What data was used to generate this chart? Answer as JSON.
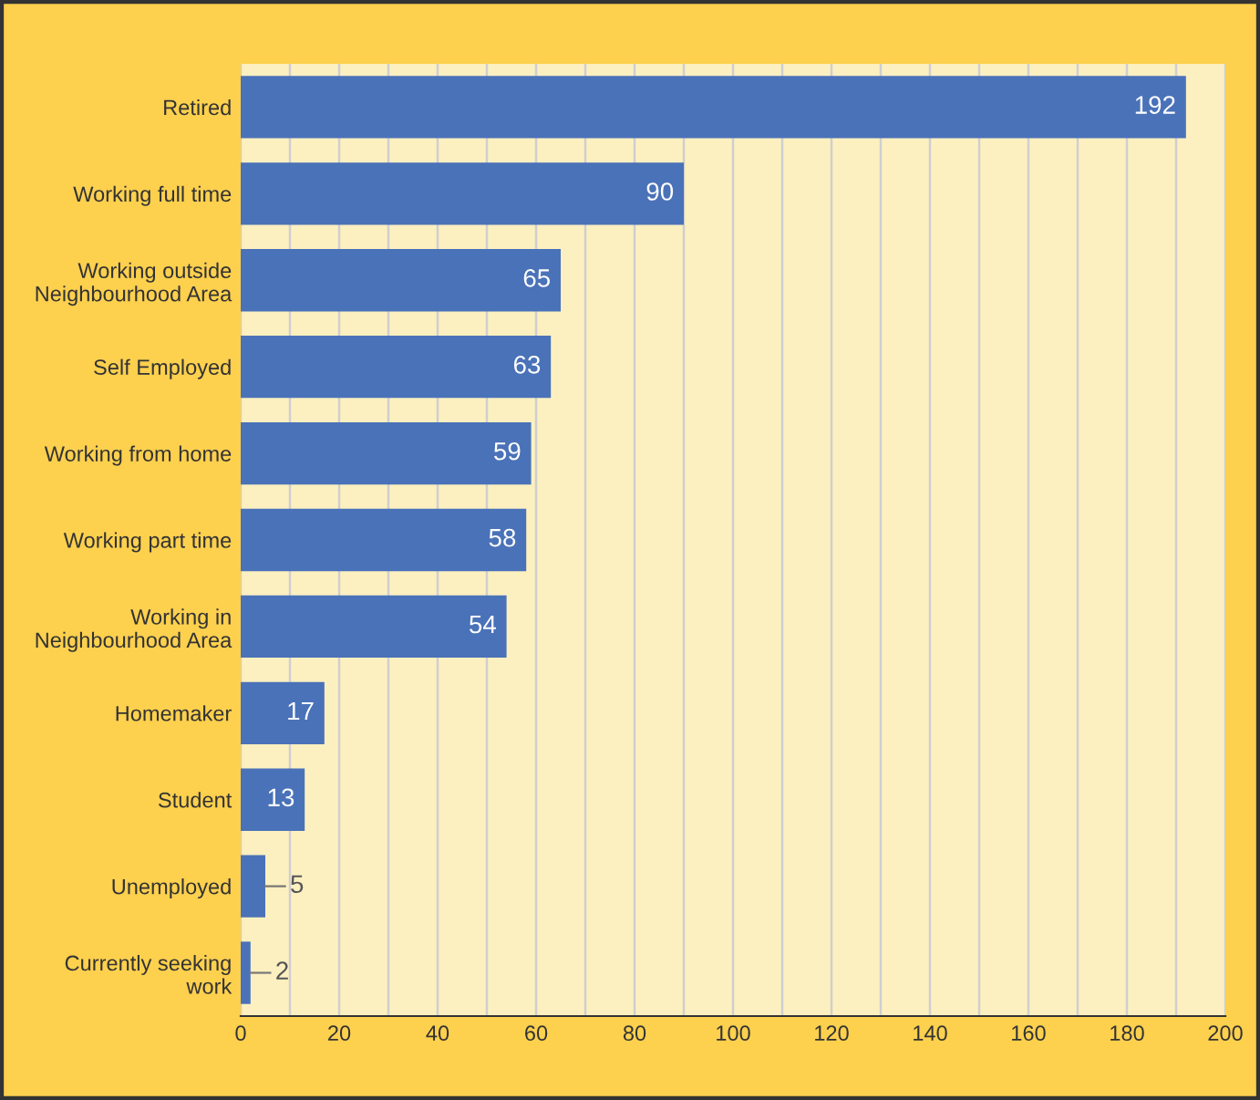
{
  "chart_data": {
    "type": "bar",
    "orientation": "horizontal",
    "categories": [
      "Retired",
      "Working full time",
      "Working outside\nNeighbourhood Area",
      "Self Employed",
      "Working from home",
      "Working part time",
      "Working in\nNeighbourhood Area",
      "Homemaker",
      "Student",
      "Unemployed",
      "Currently seeking\nwork"
    ],
    "values": [
      192,
      90,
      65,
      63,
      59,
      58,
      54,
      17,
      13,
      5,
      2
    ],
    "color": "#4a72b8",
    "data_labels": true,
    "xlim": [
      0,
      200
    ],
    "xticks": [
      0,
      {
        "value": 10,
        "label": null
      },
      20,
      {
        "value": 30,
        "label": null
      },
      40,
      {
        "value": 50,
        "label": null
      },
      60,
      {
        "value": 70,
        "label": null
      },
      80,
      {
        "value": 90,
        "label": null
      },
      100,
      {
        "value": 110,
        "label": null
      },
      120,
      {
        "value": 130,
        "label": null
      },
      140,
      {
        "value": 150,
        "label": null
      },
      160,
      {
        "value": 170,
        "label": null
      },
      180,
      {
        "value": 190,
        "label": null
      },
      200
    ],
    "grid": "x",
    "legend": false
  }
}
